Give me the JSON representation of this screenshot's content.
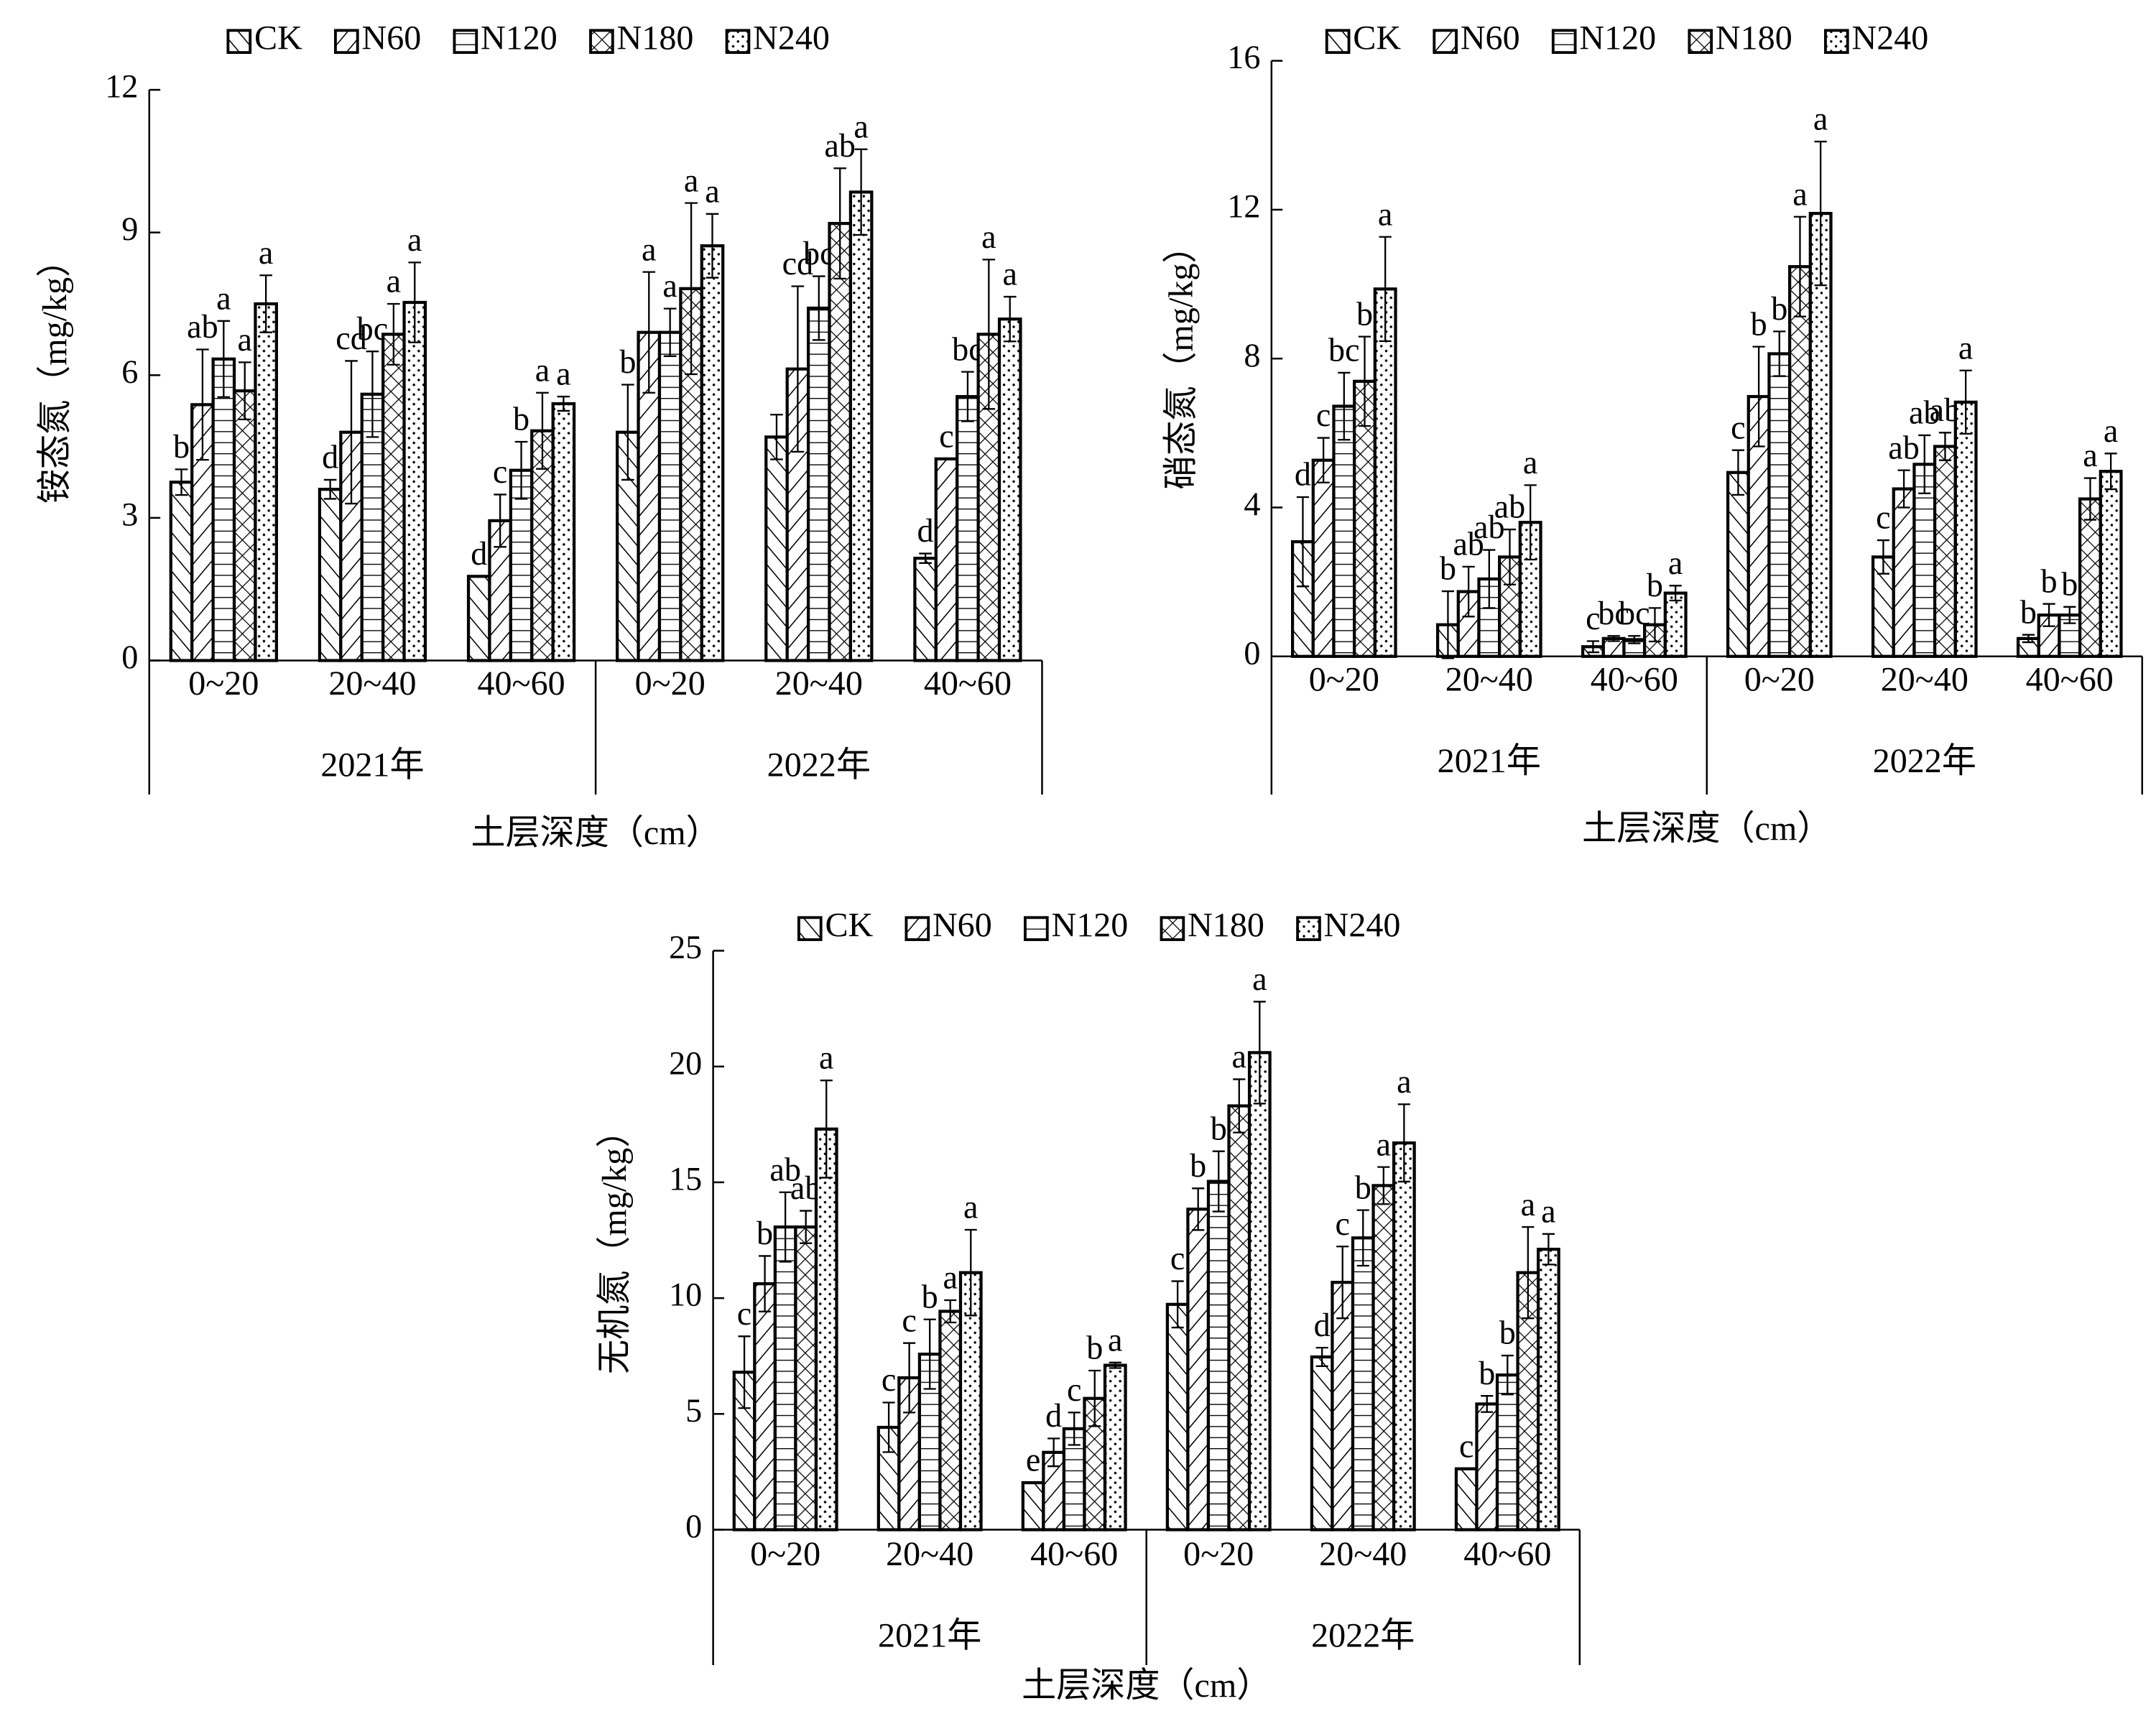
{
  "chart_data": [
    {
      "type": "bar",
      "ylabel": "铵态氮（mg/kg）",
      "xlabel": "土层深度（cm）",
      "categories": [
        "0~20",
        "20~40",
        "40~60",
        "0~20",
        "20~40",
        "40~60"
      ],
      "group_labels": [
        "2021年",
        "2022年"
      ],
      "ylim": [
        0,
        12
      ],
      "yticks": [
        0,
        3,
        6,
        9,
        12
      ],
      "legend": "top",
      "edge_color": "#000000",
      "series": [
        {
          "name": "CK",
          "pattern": "backslash",
          "values": [
            3.75,
            3.6,
            1.77,
            4.8,
            4.7,
            2.15
          ],
          "errors": [
            0.27,
            0.2,
            0,
            1.0,
            0.47,
            0.1
          ],
          "letters": [
            "b",
            "d",
            "d",
            "b",
            null,
            "d"
          ]
        },
        {
          "name": "N60",
          "pattern": "slash",
          "values": [
            5.38,
            4.8,
            2.94,
            6.9,
            6.13,
            4.24
          ],
          "errors": [
            1.16,
            1.5,
            0.55,
            1.27,
            1.74,
            0
          ],
          "letters": [
            "ab",
            "cd",
            "c",
            "a",
            "cd",
            "c"
          ]
        },
        {
          "name": "N120",
          "pattern": "horizontal",
          "values": [
            6.34,
            5.6,
            4.0,
            6.9,
            7.41,
            5.55
          ],
          "errors": [
            0.8,
            0.9,
            0.6,
            0.5,
            0.67,
            0.52
          ],
          "letters": [
            "a",
            "bc",
            "b",
            "a",
            "bc",
            "bc"
          ]
        },
        {
          "name": "N180",
          "pattern": "cross",
          "values": [
            5.67,
            6.86,
            4.83,
            7.82,
            9.19,
            6.86
          ],
          "errors": [
            0.6,
            0.64,
            0.8,
            1.8,
            1.16,
            1.57
          ],
          "letters": [
            "a",
            "a",
            "a",
            "a",
            "ab",
            "a"
          ]
        },
        {
          "name": "N240",
          "pattern": "dots",
          "values": [
            7.5,
            7.53,
            5.4,
            8.72,
            9.85,
            7.18
          ],
          "errors": [
            0.6,
            0.84,
            0.15,
            0.67,
            0.9,
            0.47
          ],
          "letters": [
            "a",
            "a",
            "a",
            "a",
            "a",
            "a"
          ]
        }
      ]
    },
    {
      "type": "bar",
      "ylabel": "硝态氮（mg/kg）",
      "xlabel": "土层深度（cm）",
      "categories": [
        "0~20",
        "20~40",
        "40~60",
        "0~20",
        "20~40",
        "40~60"
      ],
      "group_labels": [
        "2021年",
        "2022年"
      ],
      "ylim": [
        0,
        16
      ],
      "yticks": [
        0,
        4,
        8,
        12,
        16
      ],
      "legend": "top",
      "edge_color": "#000000",
      "series": [
        {
          "name": "CK",
          "pattern": "backslash",
          "values": [
            3.08,
            0.85,
            0.26,
            4.94,
            2.67,
            0.48
          ],
          "errors": [
            1.2,
            0.9,
            0.15,
            0.6,
            0.45,
            0.1
          ],
          "letters": [
            "d",
            "b",
            "c",
            "c",
            "c",
            "b"
          ]
        },
        {
          "name": "N60",
          "pattern": "slash",
          "values": [
            5.27,
            1.74,
            0.48,
            6.98,
            4.5,
            1.11
          ],
          "errors": [
            0.6,
            0.67,
            0.07,
            1.34,
            0.5,
            0.3
          ],
          "letters": [
            "c",
            "ab",
            "bc",
            "b",
            "ab",
            "b"
          ]
        },
        {
          "name": "N120",
          "pattern": "horizontal",
          "values": [
            6.72,
            2.08,
            0.45,
            8.13,
            5.16,
            1.11
          ],
          "errors": [
            0.9,
            0.78,
            0.1,
            0.6,
            0.78,
            0.22
          ],
          "letters": [
            "bc",
            "ab",
            "bc",
            "b",
            "ab",
            "b"
          ]
        },
        {
          "name": "N180",
          "pattern": "cross",
          "values": [
            7.39,
            2.67,
            0.85,
            10.47,
            5.64,
            4.23
          ],
          "errors": [
            1.2,
            0.74,
            0.45,
            1.34,
            0.37,
            0.56
          ],
          "letters": [
            "b",
            "ab",
            "b",
            "a",
            "ab",
            "a"
          ]
        },
        {
          "name": "N240",
          "pattern": "dots",
          "values": [
            9.87,
            3.6,
            1.7,
            11.9,
            6.83,
            4.97
          ],
          "errors": [
            1.4,
            1.0,
            0.2,
            1.93,
            0.85,
            0.48
          ],
          "letters": [
            "a",
            "a",
            "a",
            "a",
            "a",
            "a"
          ]
        }
      ]
    },
    {
      "type": "bar",
      "ylabel": "无机氮（mg/kg）",
      "xlabel": "土层深度（cm）",
      "categories": [
        "0~20",
        "20~40",
        "40~60",
        "0~20",
        "20~40",
        "40~60"
      ],
      "group_labels": [
        "2021年",
        "2022年"
      ],
      "ylim": [
        0,
        25
      ],
      "yticks": [
        0,
        5,
        10,
        15,
        20,
        25
      ],
      "legend": "top",
      "edge_color": "#000000",
      "series": [
        {
          "name": "CK",
          "pattern": "backslash",
          "values": [
            6.8,
            4.42,
            2.03,
            9.73,
            7.46,
            2.63
          ],
          "errors": [
            1.55,
            1.07,
            0,
            1.0,
            0.4,
            0
          ],
          "letters": [
            "c",
            "c",
            "e",
            "c",
            "d",
            "c"
          ]
        },
        {
          "name": "N60",
          "pattern": "slash",
          "values": [
            10.62,
            6.56,
            3.34,
            13.84,
            10.68,
            5.43
          ],
          "errors": [
            1.2,
            1.5,
            0.6,
            0.9,
            1.55,
            0.35
          ],
          "letters": [
            "b",
            "c",
            "d",
            "b",
            "c",
            "b"
          ]
        },
        {
          "name": "N120",
          "pattern": "horizontal",
          "values": [
            13.07,
            7.58,
            4.36,
            15.04,
            12.6,
            6.68
          ],
          "errors": [
            1.5,
            1.5,
            0.7,
            1.3,
            1.2,
            0.84
          ],
          "letters": [
            "ab",
            "b",
            "c",
            "b",
            "b",
            "b"
          ]
        },
        {
          "name": "N180",
          "pattern": "cross",
          "values": [
            13.07,
            9.43,
            5.67,
            18.3,
            14.86,
            11.1
          ],
          "errors": [
            0.7,
            0.48,
            1.2,
            1.15,
            0.8,
            1.97
          ],
          "letters": [
            "ab",
            "a",
            "b",
            "a",
            "a",
            "a"
          ]
        },
        {
          "name": "N240",
          "pattern": "dots",
          "values": [
            17.3,
            11.1,
            7.1,
            20.6,
            16.7,
            12.11
          ],
          "errors": [
            2.1,
            1.85,
            0.12,
            2.2,
            1.67,
            0.66
          ],
          "letters": [
            "a",
            "a",
            "a",
            "a",
            "a",
            "a"
          ]
        }
      ]
    }
  ]
}
